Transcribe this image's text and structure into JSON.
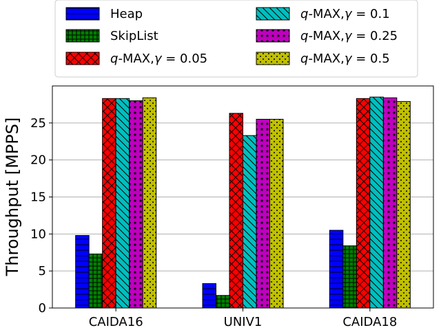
{
  "chart_data": {
    "type": "bar",
    "categories": [
      "CAIDA16",
      "UNIV1",
      "CAIDA18"
    ],
    "ylabel": "Throughput [MPPS]",
    "xlabel": "",
    "ylim": [
      0,
      30
    ],
    "yticks": [
      0,
      5,
      10,
      15,
      20,
      25
    ],
    "grid": "y",
    "legend_placement": "top",
    "series": [
      {
        "name": "Heap",
        "name_var": "",
        "name_val": "",
        "color": "#0000ff",
        "hatch": "horizontal",
        "values": [
          9.8,
          3.3,
          10.5
        ]
      },
      {
        "name": "SkipList",
        "name_var": "",
        "name_val": "",
        "color": "#008000",
        "hatch": "grid",
        "values": [
          7.3,
          1.7,
          8.4
        ]
      },
      {
        "name": "-MAX,",
        "name_var": "q",
        "name_val": " = 0.05",
        "color": "#ff0000",
        "hatch": "cross",
        "values": [
          28.3,
          26.3,
          28.3
        ]
      },
      {
        "name": "-MAX,",
        "name_var": "q",
        "name_val": " = 0.1",
        "color": "#00bfbf",
        "hatch": "diagonal",
        "values": [
          28.3,
          23.3,
          28.5
        ]
      },
      {
        "name": "-MAX,",
        "name_var": "q",
        "name_val": " = 0.25",
        "color": "#bf00bf",
        "hatch": "stars",
        "values": [
          28.0,
          25.5,
          28.4
        ]
      },
      {
        "name": "-MAX,",
        "name_var": "q",
        "name_val": " = 0.5",
        "color": "#bfbf00",
        "hatch": "dots",
        "values": [
          28.4,
          25.5,
          27.9
        ]
      }
    ]
  }
}
